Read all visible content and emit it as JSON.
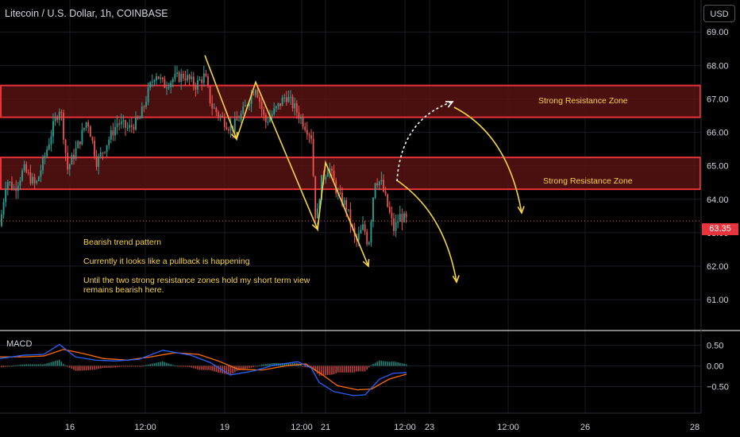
{
  "header": {
    "symbol_title": "Litecoin / U.S. Dollar, 1h, COINBASE",
    "currency_button": "USD"
  },
  "indicator": {
    "macd_label": "MACD"
  },
  "price_tag": "63.35",
  "annotations": {
    "zone_labels": [
      "Strong Resistance Zone",
      "Strong Resistance Zone"
    ],
    "notes": [
      "Bearish trend pattern",
      "Currently it looks like a pullback is happening",
      "Until the two strong resistance zones hold my short term view remains bearish here."
    ]
  },
  "colors": {
    "background": "#000000",
    "up": "#26a69a",
    "down": "#ef5350",
    "zone_fill": "#5a1414",
    "zone_border": "#e8323c",
    "annotation": "#f5d442",
    "macd_line": "#2962ff",
    "signal_line": "#ff6d00"
  },
  "chart_data": {
    "type": "candlestick",
    "title": "Litecoin / U.S. Dollar, 1h, COINBASE",
    "y_ticks": [
      "69.00",
      "68.00",
      "67.00",
      "66.00",
      "65.00",
      "64.00",
      "63.00",
      "62.00",
      "61.00"
    ],
    "ylim": [
      60.6,
      69.1
    ],
    "x_ticks": [
      "16",
      "12:00",
      "19",
      "12:00",
      "21",
      "12:00",
      "23",
      "12:00",
      "26",
      "28"
    ],
    "last_price": 63.35,
    "resistance_zones": [
      {
        "low": 66.45,
        "high": 67.4,
        "label": "Strong Resistance Zone"
      },
      {
        "low": 64.3,
        "high": 65.25,
        "label": "Strong Resistance Zone"
      }
    ],
    "close_path": [
      {
        "x": 0,
        "y": 63.2
      },
      {
        "x": 8,
        "y": 64.6
      },
      {
        "x": 18,
        "y": 64.3
      },
      {
        "x": 30,
        "y": 64.9
      },
      {
        "x": 45,
        "y": 64.4
      },
      {
        "x": 58,
        "y": 65.4
      },
      {
        "x": 66,
        "y": 66.1
      },
      {
        "x": 76,
        "y": 66.8
      },
      {
        "x": 85,
        "y": 64.9
      },
      {
        "x": 98,
        "y": 65.6
      },
      {
        "x": 110,
        "y": 66.4
      },
      {
        "x": 122,
        "y": 65.1
      },
      {
        "x": 135,
        "y": 65.7
      },
      {
        "x": 148,
        "y": 66.3
      },
      {
        "x": 162,
        "y": 66.1
      },
      {
        "x": 176,
        "y": 66.4
      },
      {
        "x": 188,
        "y": 67.3
      },
      {
        "x": 196,
        "y": 67.8
      },
      {
        "x": 206,
        "y": 67.4
      },
      {
        "x": 218,
        "y": 67.6
      },
      {
        "x": 232,
        "y": 67.7
      },
      {
        "x": 246,
        "y": 67.4
      },
      {
        "x": 258,
        "y": 67.7
      },
      {
        "x": 266,
        "y": 66.8
      },
      {
        "x": 280,
        "y": 66.4
      },
      {
        "x": 292,
        "y": 66.1
      },
      {
        "x": 306,
        "y": 66.6
      },
      {
        "x": 322,
        "y": 67.4
      },
      {
        "x": 334,
        "y": 66.3
      },
      {
        "x": 348,
        "y": 66.7
      },
      {
        "x": 360,
        "y": 67.1
      },
      {
        "x": 372,
        "y": 66.7
      },
      {
        "x": 382,
        "y": 66.3
      },
      {
        "x": 392,
        "y": 65.9
      },
      {
        "x": 398,
        "y": 63.2
      },
      {
        "x": 404,
        "y": 64.5
      },
      {
        "x": 414,
        "y": 65.0
      },
      {
        "x": 426,
        "y": 64.1
      },
      {
        "x": 436,
        "y": 63.8
      },
      {
        "x": 448,
        "y": 62.7
      },
      {
        "x": 458,
        "y": 63.2
      },
      {
        "x": 464,
        "y": 62.6
      },
      {
        "x": 472,
        "y": 64.6
      },
      {
        "x": 480,
        "y": 64.5
      },
      {
        "x": 488,
        "y": 63.8
      },
      {
        "x": 496,
        "y": 63.1
      },
      {
        "x": 504,
        "y": 63.5
      },
      {
        "x": 512,
        "y": 63.35
      }
    ],
    "macd": {
      "ylim": [
        -0.78,
        0.55
      ],
      "y_ticks": [
        "0.50",
        "0.00",
        "−0.50"
      ],
      "macd_line": [
        {
          "x": 0,
          "y": 0.18
        },
        {
          "x": 30,
          "y": 0.26
        },
        {
          "x": 55,
          "y": 0.28
        },
        {
          "x": 75,
          "y": 0.52
        },
        {
          "x": 95,
          "y": 0.22
        },
        {
          "x": 120,
          "y": 0.14
        },
        {
          "x": 145,
          "y": 0.12
        },
        {
          "x": 175,
          "y": 0.16
        },
        {
          "x": 205,
          "y": 0.38
        },
        {
          "x": 240,
          "y": 0.26
        },
        {
          "x": 265,
          "y": 0.08
        },
        {
          "x": 290,
          "y": -0.22
        },
        {
          "x": 320,
          "y": -0.12
        },
        {
          "x": 345,
          "y": 0.02
        },
        {
          "x": 375,
          "y": 0.1
        },
        {
          "x": 392,
          "y": -0.05
        },
        {
          "x": 402,
          "y": -0.4
        },
        {
          "x": 420,
          "y": -0.62
        },
        {
          "x": 445,
          "y": -0.72
        },
        {
          "x": 460,
          "y": -0.7
        },
        {
          "x": 478,
          "y": -0.32
        },
        {
          "x": 495,
          "y": -0.18
        },
        {
          "x": 512,
          "y": -0.16
        }
      ],
      "signal_line": [
        {
          "x": 0,
          "y": 0.22
        },
        {
          "x": 30,
          "y": 0.22
        },
        {
          "x": 55,
          "y": 0.24
        },
        {
          "x": 80,
          "y": 0.4
        },
        {
          "x": 105,
          "y": 0.3
        },
        {
          "x": 130,
          "y": 0.18
        },
        {
          "x": 160,
          "y": 0.14
        },
        {
          "x": 190,
          "y": 0.22
        },
        {
          "x": 220,
          "y": 0.32
        },
        {
          "x": 250,
          "y": 0.28
        },
        {
          "x": 275,
          "y": 0.12
        },
        {
          "x": 300,
          "y": -0.08
        },
        {
          "x": 330,
          "y": -0.1
        },
        {
          "x": 360,
          "y": 0.0
        },
        {
          "x": 385,
          "y": 0.05
        },
        {
          "x": 405,
          "y": -0.2
        },
        {
          "x": 425,
          "y": -0.48
        },
        {
          "x": 450,
          "y": -0.58
        },
        {
          "x": 468,
          "y": -0.56
        },
        {
          "x": 490,
          "y": -0.32
        },
        {
          "x": 512,
          "y": -0.2
        }
      ]
    }
  }
}
